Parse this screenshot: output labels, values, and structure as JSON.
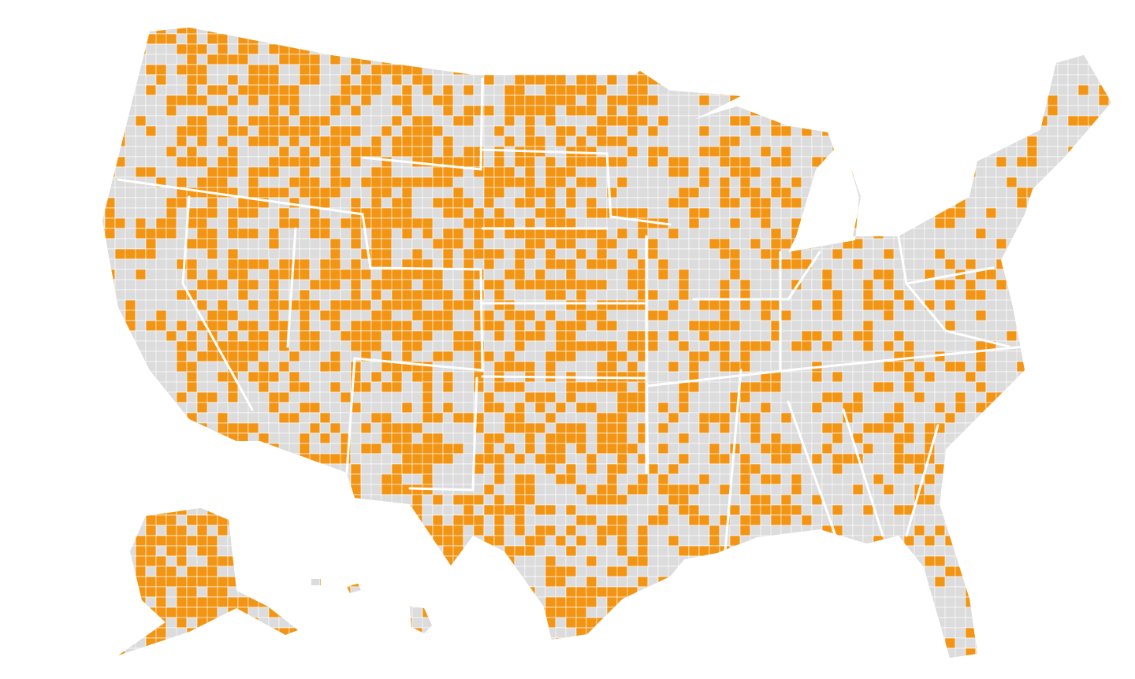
{
  "map": {
    "type": "choropleth",
    "region_unit": "county",
    "categories": [
      "highlighted",
      "not highlighted"
    ],
    "colors": {
      "highlighted": "#F39514",
      "not_highlighted": "#DCDCDC",
      "borders": "#FFFFFF",
      "background": "#FFFFFF"
    },
    "areas": [
      "contiguous-us",
      "alaska",
      "hawaii"
    ]
  }
}
